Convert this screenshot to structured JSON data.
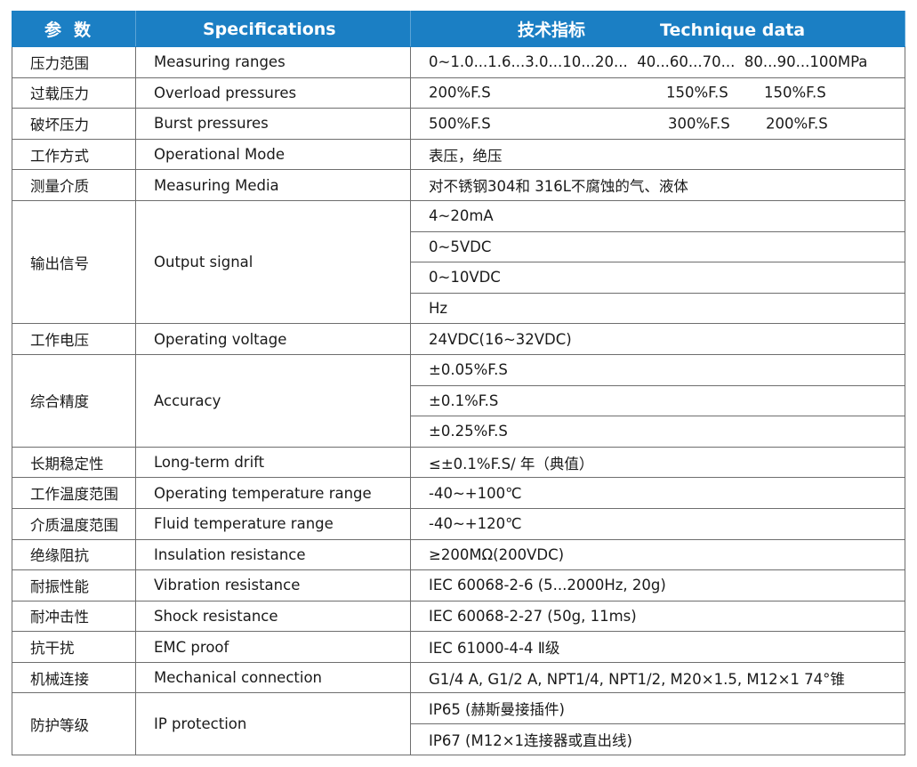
{
  "header": {
    "param": "参数",
    "spec": "Specifications",
    "data_cn": "技术指标",
    "data_en": "Technique data"
  },
  "colors": {
    "header_bg": "#1b7fc4",
    "header_text": "#ffffff",
    "border": "#6e6e6e"
  },
  "rows": {
    "range": {
      "cn": "压力范围",
      "en": "Measuring ranges",
      "value": "0~1.0...1.6...3.0...10...20...  40...60...70...  80...90...100MPa"
    },
    "overload": {
      "cn": "过载压力",
      "en": "Overload pressures",
      "values": [
        "200%F.S",
        "150%F.S",
        "150%F.S"
      ]
    },
    "burst": {
      "cn": "破坏压力",
      "en": "Burst pressures",
      "values": [
        "500%F.S",
        "300%F.S",
        "200%F.S"
      ]
    },
    "mode": {
      "cn": "工作方式",
      "en": "Operational Mode",
      "value": "表压，绝压"
    },
    "media": {
      "cn": "测量介质",
      "en": "Measuring Media",
      "value": "对不锈钢304和 316L不腐蚀的气、液体"
    },
    "output": {
      "cn": "输出信号",
      "en": "Output signal",
      "values": [
        "4~20mA",
        "0~5VDC",
        "0~10VDC",
        "Hz"
      ]
    },
    "voltage": {
      "cn": "工作电压",
      "en": "Operating voltage",
      "value": "24VDC(16~32VDC)"
    },
    "accuracy": {
      "cn": "综合精度",
      "en": "Accuracy",
      "values": [
        "±0.05%F.S",
        "±0.1%F.S",
        "±0.25%F.S"
      ]
    },
    "drift": {
      "cn": "长期稳定性",
      "en": "Long-term drift",
      "value": "≤±0.1%F.S/ 年（典值）"
    },
    "op_temp": {
      "cn": "工作温度范围",
      "en": "Operating temperature range",
      "value": "-40~+100℃"
    },
    "fluid_temp": {
      "cn": "介质温度范围",
      "en": "Fluid temperature range",
      "value": "-40~+120℃"
    },
    "insulation": {
      "cn": "绝缘阻抗",
      "en": "Insulation resistance",
      "value": "≥200MΩ(200VDC)"
    },
    "vibration": {
      "cn": "耐振性能",
      "en": "Vibration resistance",
      "value": "IEC 60068-2-6 (5...2000Hz, 20g)"
    },
    "shock": {
      "cn": "耐冲击性",
      "en": "Shock resistance",
      "value": "IEC 60068-2-27 (50g, 11ms)"
    },
    "emc": {
      "cn": "抗干扰",
      "en": "EMC proof",
      "value": "IEC 61000-4-4 Ⅱ级"
    },
    "mechanical": {
      "cn": "机械连接",
      "en": "Mechanical connection",
      "value": "G1/4 A, G1/2 A, NPT1/4, NPT1/2, M20×1.5, M12×1 74°锥"
    },
    "ip": {
      "cn": "防护等级",
      "en": "IP protection",
      "values": [
        "IP65 (赫斯曼接插件)",
        "IP67 (M12×1连接器或直出线)"
      ]
    }
  }
}
